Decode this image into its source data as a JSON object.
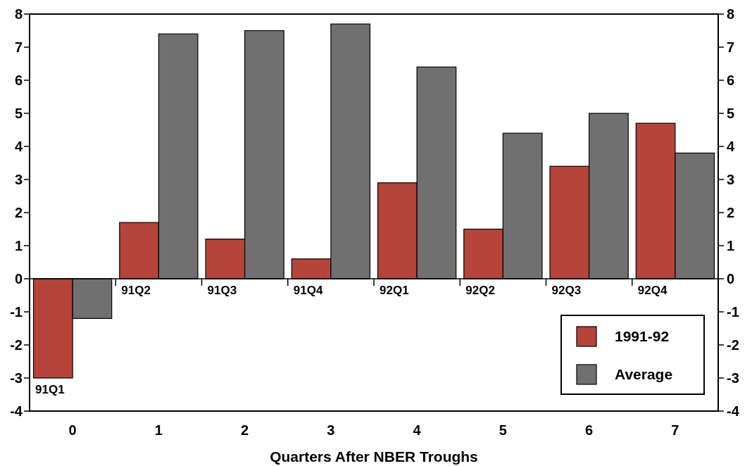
{
  "chart_data": {
    "type": "bar",
    "xlabel": "Quarters After NBER Troughs",
    "categories": [
      "0",
      "1",
      "2",
      "3",
      "4",
      "5",
      "6",
      "7"
    ],
    "series": [
      {
        "name": "1991-92",
        "color": "#b5443a",
        "values": [
          -3.0,
          1.7,
          1.2,
          0.6,
          2.9,
          1.5,
          3.4,
          4.7
        ]
      },
      {
        "name": "Average",
        "color": "#707070",
        "values": [
          -1.2,
          7.4,
          7.5,
          7.7,
          6.4,
          4.4,
          5.0,
          3.8
        ]
      }
    ],
    "ylim": [
      -4,
      8
    ],
    "yticks": [
      -4,
      -3,
      -2,
      -1,
      0,
      1,
      2,
      3,
      4,
      5,
      6,
      7,
      8
    ],
    "y2lim": [
      -4,
      8
    ],
    "y2ticks": [
      -4,
      -3,
      -2,
      -1,
      0,
      1,
      2,
      3,
      4,
      5,
      6,
      7,
      8
    ],
    "annotations": [
      {
        "text": "91Q1",
        "x": "0",
        "y": -3.0
      },
      {
        "text": "91Q2",
        "x": "1",
        "y": 0
      },
      {
        "text": "91Q3",
        "x": "2",
        "y": 0
      },
      {
        "text": "91Q4",
        "x": "3",
        "y": 0
      },
      {
        "text": "92Q1",
        "x": "4",
        "y": 0
      },
      {
        "text": "92Q2",
        "x": "5",
        "y": 0
      },
      {
        "text": "92Q3",
        "x": "6",
        "y": 0
      },
      {
        "text": "92Q4",
        "x": "7",
        "y": 0
      }
    ],
    "legend": "bottom right"
  }
}
